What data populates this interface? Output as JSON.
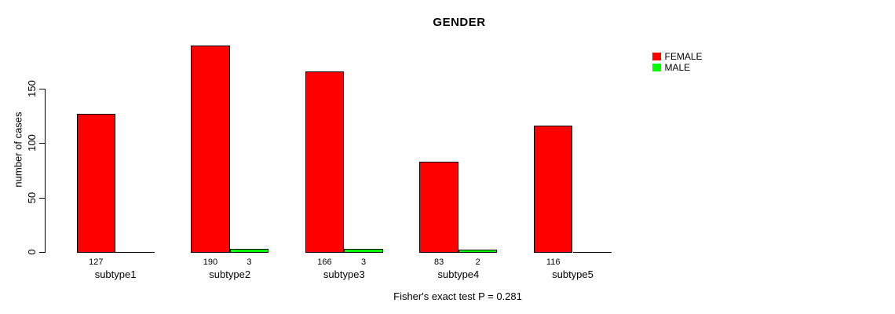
{
  "title": "GENDER",
  "chart_data": {
    "type": "bar",
    "title": "GENDER",
    "ylabel": "number of cases",
    "xlabel": "",
    "categories": [
      "subtype1",
      "subtype2",
      "subtype3",
      "subtype4",
      "subtype5"
    ],
    "series": [
      {
        "name": "FEMALE",
        "color": "#ff0000",
        "values": [
          127,
          190,
          166,
          83,
          116
        ]
      },
      {
        "name": "MALE",
        "color": "#00ff00",
        "values": [
          0,
          3,
          3,
          2,
          0
        ]
      }
    ],
    "bar_value_labels": {
      "FEMALE": [
        "127",
        "190",
        "166",
        "83",
        "116"
      ],
      "MALE": [
        "",
        "3",
        "3",
        "2",
        ""
      ]
    },
    "yticks": [
      0,
      50,
      100,
      150
    ],
    "ylim": [
      0,
      190
    ],
    "grid": false,
    "legend_position": "topright",
    "annotation": "Fisher's exact test P = 0.281"
  },
  "legend": [
    {
      "label": "FEMALE",
      "color": "#ff0000"
    },
    {
      "label": "MALE",
      "color": "#00ff00"
    }
  ],
  "colors": {
    "female": "#ff0000",
    "male": "#00ff00",
    "axis": "#000000",
    "background": "#ffffff"
  }
}
